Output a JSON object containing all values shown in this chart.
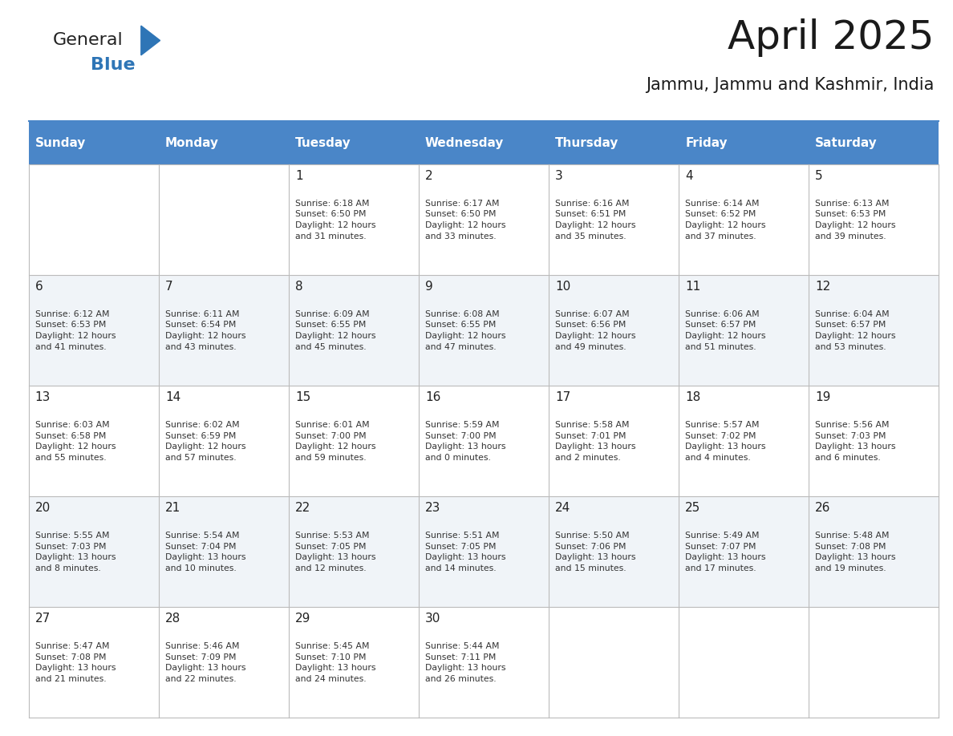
{
  "title": "April 2025",
  "subtitle": "Jammu, Jammu and Kashmir, India",
  "days_of_week": [
    "Sunday",
    "Monday",
    "Tuesday",
    "Wednesday",
    "Thursday",
    "Friday",
    "Saturday"
  ],
  "header_bg": "#4A86C8",
  "header_text": "#FFFFFF",
  "row_bg_even": "#FFFFFF",
  "row_bg_odd": "#F0F4F8",
  "cell_text": "#333333",
  "day_num_color": "#222222",
  "grid_color": "#BBBBBB",
  "calendar_data": [
    [
      "",
      "",
      "1\nSunrise: 6:18 AM\nSunset: 6:50 PM\nDaylight: 12 hours\nand 31 minutes.",
      "2\nSunrise: 6:17 AM\nSunset: 6:50 PM\nDaylight: 12 hours\nand 33 minutes.",
      "3\nSunrise: 6:16 AM\nSunset: 6:51 PM\nDaylight: 12 hours\nand 35 minutes.",
      "4\nSunrise: 6:14 AM\nSunset: 6:52 PM\nDaylight: 12 hours\nand 37 minutes.",
      "5\nSunrise: 6:13 AM\nSunset: 6:53 PM\nDaylight: 12 hours\nand 39 minutes."
    ],
    [
      "6\nSunrise: 6:12 AM\nSunset: 6:53 PM\nDaylight: 12 hours\nand 41 minutes.",
      "7\nSunrise: 6:11 AM\nSunset: 6:54 PM\nDaylight: 12 hours\nand 43 minutes.",
      "8\nSunrise: 6:09 AM\nSunset: 6:55 PM\nDaylight: 12 hours\nand 45 minutes.",
      "9\nSunrise: 6:08 AM\nSunset: 6:55 PM\nDaylight: 12 hours\nand 47 minutes.",
      "10\nSunrise: 6:07 AM\nSunset: 6:56 PM\nDaylight: 12 hours\nand 49 minutes.",
      "11\nSunrise: 6:06 AM\nSunset: 6:57 PM\nDaylight: 12 hours\nand 51 minutes.",
      "12\nSunrise: 6:04 AM\nSunset: 6:57 PM\nDaylight: 12 hours\nand 53 minutes."
    ],
    [
      "13\nSunrise: 6:03 AM\nSunset: 6:58 PM\nDaylight: 12 hours\nand 55 minutes.",
      "14\nSunrise: 6:02 AM\nSunset: 6:59 PM\nDaylight: 12 hours\nand 57 minutes.",
      "15\nSunrise: 6:01 AM\nSunset: 7:00 PM\nDaylight: 12 hours\nand 59 minutes.",
      "16\nSunrise: 5:59 AM\nSunset: 7:00 PM\nDaylight: 13 hours\nand 0 minutes.",
      "17\nSunrise: 5:58 AM\nSunset: 7:01 PM\nDaylight: 13 hours\nand 2 minutes.",
      "18\nSunrise: 5:57 AM\nSunset: 7:02 PM\nDaylight: 13 hours\nand 4 minutes.",
      "19\nSunrise: 5:56 AM\nSunset: 7:03 PM\nDaylight: 13 hours\nand 6 minutes."
    ],
    [
      "20\nSunrise: 5:55 AM\nSunset: 7:03 PM\nDaylight: 13 hours\nand 8 minutes.",
      "21\nSunrise: 5:54 AM\nSunset: 7:04 PM\nDaylight: 13 hours\nand 10 minutes.",
      "22\nSunrise: 5:53 AM\nSunset: 7:05 PM\nDaylight: 13 hours\nand 12 minutes.",
      "23\nSunrise: 5:51 AM\nSunset: 7:05 PM\nDaylight: 13 hours\nand 14 minutes.",
      "24\nSunrise: 5:50 AM\nSunset: 7:06 PM\nDaylight: 13 hours\nand 15 minutes.",
      "25\nSunrise: 5:49 AM\nSunset: 7:07 PM\nDaylight: 13 hours\nand 17 minutes.",
      "26\nSunrise: 5:48 AM\nSunset: 7:08 PM\nDaylight: 13 hours\nand 19 minutes."
    ],
    [
      "27\nSunrise: 5:47 AM\nSunset: 7:08 PM\nDaylight: 13 hours\nand 21 minutes.",
      "28\nSunrise: 5:46 AM\nSunset: 7:09 PM\nDaylight: 13 hours\nand 22 minutes.",
      "29\nSunrise: 5:45 AM\nSunset: 7:10 PM\nDaylight: 13 hours\nand 24 minutes.",
      "30\nSunrise: 5:44 AM\nSunset: 7:11 PM\nDaylight: 13 hours\nand 26 minutes.",
      "",
      "",
      ""
    ]
  ],
  "logo_text_general": "General",
  "logo_text_blue": "Blue",
  "logo_triangle_color": "#2E75B6",
  "logo_general_color": "#222222",
  "logo_blue_color": "#2E75B6"
}
